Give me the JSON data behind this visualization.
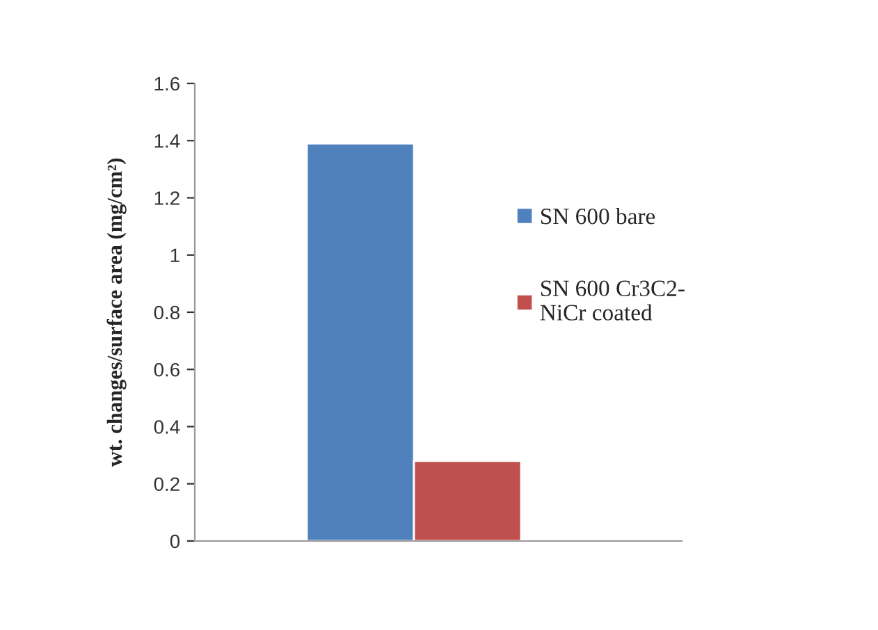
{
  "chart_data": {
    "type": "bar",
    "ylabel": "wt. changes/surface area (mg/cm²)",
    "categories": [
      null
    ],
    "series": [
      {
        "name": "SN 600 bare",
        "color": "#4f81bd",
        "values": [
          1.39
        ]
      },
      {
        "name": "SN 600 Cr3C2-\nNiCr coated",
        "color": "#c0504d",
        "values": [
          0.28
        ]
      }
    ],
    "ylim": [
      0,
      1.6
    ],
    "yticks": [
      0,
      0.2,
      0.4,
      0.6,
      0.8,
      1,
      1.2,
      1.4,
      1.6
    ],
    "grid": false,
    "legend": "right"
  }
}
